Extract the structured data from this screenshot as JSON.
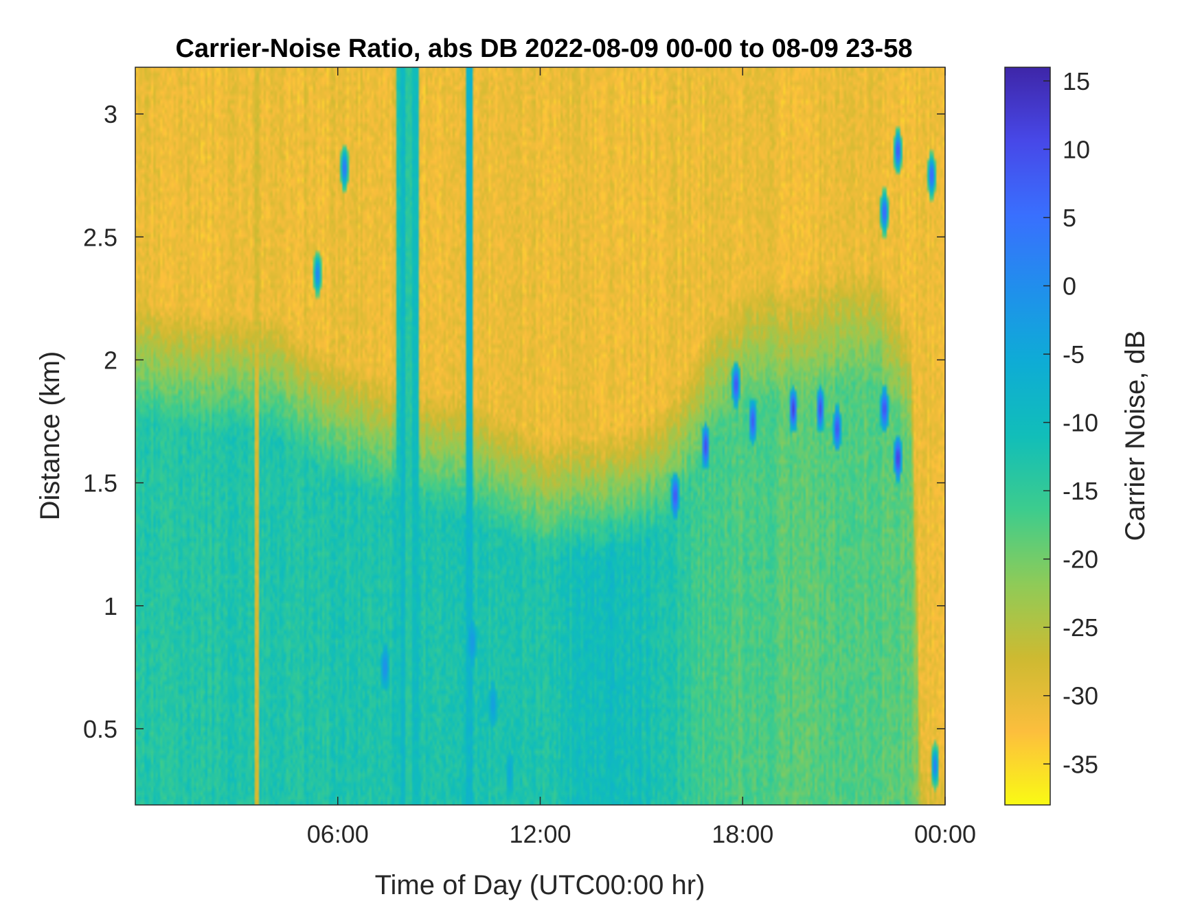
{
  "chart_data": {
    "type": "heatmap",
    "title": "Carrier-Noise Ratio, abs DB 2022-08-09 00-00 to 08-09 23-58",
    "xlabel": "Time of Day (UTC00:00 hr)",
    "ylabel": "Distance (km)",
    "colorbar_label": "Carrier Noise, dB",
    "x_unit": "hours",
    "xlim": [
      0,
      24
    ],
    "ylim": [
      0.19,
      3.19
    ],
    "clim": [
      -38,
      16
    ],
    "x_ticks": [
      {
        "value": 6,
        "label": "06:00"
      },
      {
        "value": 12,
        "label": "12:00"
      },
      {
        "value": 18,
        "label": "18:00"
      },
      {
        "value": 24,
        "label": "00:00"
      }
    ],
    "y_ticks": [
      {
        "value": 0.5,
        "label": "0.5"
      },
      {
        "value": 1,
        "label": "1"
      },
      {
        "value": 1.5,
        "label": "1.5"
      },
      {
        "value": 2,
        "label": "2"
      },
      {
        "value": 2.5,
        "label": "2.5"
      },
      {
        "value": 3,
        "label": "3"
      }
    ],
    "colorbar_ticks": [
      {
        "value": 15,
        "label": "15"
      },
      {
        "value": 10,
        "label": "10"
      },
      {
        "value": 5,
        "label": "5"
      },
      {
        "value": 0,
        "label": "0"
      },
      {
        "value": -5,
        "label": "-5"
      },
      {
        "value": -10,
        "label": "-10"
      },
      {
        "value": -15,
        "label": "-15"
      },
      {
        "value": -20,
        "label": "-20"
      },
      {
        "value": -25,
        "label": "-25"
      },
      {
        "value": -30,
        "label": "-30"
      },
      {
        "value": -35,
        "label": "-35"
      }
    ],
    "colormap": "parula",
    "background_cnr_db": -31,
    "boundary_layer_top_km": [
      [
        0,
        2.0
      ],
      [
        2,
        1.95
      ],
      [
        4,
        1.95
      ],
      [
        6,
        1.75
      ],
      [
        8,
        1.65
      ],
      [
        10,
        1.6
      ],
      [
        12,
        1.45
      ],
      [
        14,
        1.45
      ],
      [
        15,
        1.5
      ],
      [
        16,
        1.6
      ],
      [
        17,
        1.9
      ],
      [
        18,
        2.05
      ],
      [
        20,
        2.1
      ],
      [
        22,
        2.15
      ],
      [
        23,
        1.9
      ],
      [
        23.3,
        0.2
      ],
      [
        24,
        0.2
      ]
    ],
    "layer_core_cnr_db": [
      [
        0,
        -14
      ],
      [
        3,
        -13
      ],
      [
        6,
        -13
      ],
      [
        9,
        -12.5
      ],
      [
        12,
        -13
      ],
      [
        14,
        -10
      ],
      [
        15.5,
        -12
      ],
      [
        17,
        -17
      ],
      [
        20,
        -18
      ],
      [
        23,
        -18
      ],
      [
        23.3,
        -25
      ],
      [
        24,
        -27
      ]
    ],
    "vertical_streaks_hours": [
      {
        "t": 3.6,
        "cnr": -28
      },
      {
        "t": 7.8,
        "cnr": -12
      },
      {
        "t": 7.95,
        "cnr": -9
      },
      {
        "t": 8.1,
        "cnr": -14
      },
      {
        "t": 8.3,
        "cnr": -10
      },
      {
        "t": 9.9,
        "cnr": -8
      }
    ],
    "strong_return_patches": [
      {
        "t": 6.2,
        "d": 2.78,
        "cnr": 5
      },
      {
        "t": 5.4,
        "d": 2.35,
        "cnr": 3
      },
      {
        "t": 7.4,
        "d": 0.75,
        "cnr": 0
      },
      {
        "t": 10.0,
        "d": 0.85,
        "cnr": -2
      },
      {
        "t": 10.6,
        "d": 0.6,
        "cnr": -3
      },
      {
        "t": 11.1,
        "d": 0.32,
        "cnr": -5
      },
      {
        "t": 16.0,
        "d": 1.45,
        "cnr": 9
      },
      {
        "t": 16.9,
        "d": 1.65,
        "cnr": 10
      },
      {
        "t": 17.8,
        "d": 1.9,
        "cnr": 10
      },
      {
        "t": 18.3,
        "d": 1.75,
        "cnr": 8
      },
      {
        "t": 19.5,
        "d": 1.8,
        "cnr": 12
      },
      {
        "t": 20.3,
        "d": 1.8,
        "cnr": 10
      },
      {
        "t": 20.8,
        "d": 1.72,
        "cnr": 10
      },
      {
        "t": 22.2,
        "d": 1.8,
        "cnr": 10
      },
      {
        "t": 22.6,
        "d": 1.6,
        "cnr": 13
      },
      {
        "t": 22.2,
        "d": 2.6,
        "cnr": 8
      },
      {
        "t": 22.6,
        "d": 2.85,
        "cnr": 10
      },
      {
        "t": 23.6,
        "d": 2.75,
        "cnr": 8
      },
      {
        "t": 23.7,
        "d": 0.35,
        "cnr": 3
      }
    ]
  }
}
